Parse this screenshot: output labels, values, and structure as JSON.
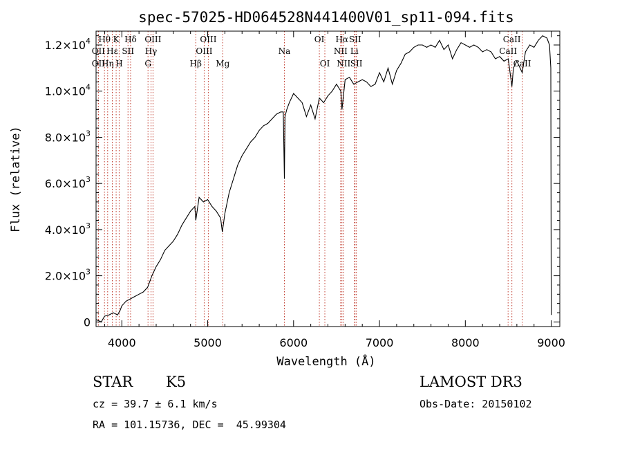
{
  "chart_data": {
    "type": "line",
    "title": "spec-57025-HD064528N441400V01_sp11-094.fits",
    "xlabel": "Wavelength (Å)",
    "ylabel": "Flux (relative)",
    "xlim": [
      3700,
      9100
    ],
    "ylim": [
      -200,
      12600
    ],
    "x_ticks": [
      {
        "value": 4000,
        "label": "4000"
      },
      {
        "value": 5000,
        "label": "5000"
      },
      {
        "value": 6000,
        "label": "6000"
      },
      {
        "value": 7000,
        "label": "7000"
      },
      {
        "value": 8000,
        "label": "8000"
      },
      {
        "value": 9000,
        "label": "9000"
      }
    ],
    "y_ticks": [
      {
        "value": 0,
        "mantissa": "0",
        "exponent": ""
      },
      {
        "value": 2000,
        "mantissa": "2.0×10",
        "exponent": "3"
      },
      {
        "value": 4000,
        "mantissa": "4.0×10",
        "exponent": "3"
      },
      {
        "value": 6000,
        "mantissa": "6.0×10",
        "exponent": "3"
      },
      {
        "value": 8000,
        "mantissa": "8.0×10",
        "exponent": "3"
      },
      {
        "value": 10000,
        "mantissa": "1.0×10",
        "exponent": "4"
      },
      {
        "value": 12000,
        "mantissa": "1.2×10",
        "exponent": "4"
      }
    ],
    "series": [
      {
        "name": "spectrum",
        "x": [
          3700,
          3760,
          3800,
          3850,
          3900,
          3950,
          3980,
          4000,
          4050,
          4100,
          4150,
          4200,
          4250,
          4300,
          4350,
          4400,
          4450,
          4500,
          4550,
          4600,
          4650,
          4700,
          4750,
          4800,
          4850,
          4861,
          4900,
          4950,
          5000,
          5050,
          5100,
          5150,
          5170,
          5200,
          5250,
          5300,
          5350,
          5400,
          5450,
          5500,
          5550,
          5600,
          5650,
          5700,
          5750,
          5800,
          5850,
          5880,
          5893,
          5900,
          5920,
          5950,
          6000,
          6050,
          6100,
          6150,
          6200,
          6250,
          6300,
          6350,
          6400,
          6450,
          6500,
          6550,
          6563,
          6600,
          6650,
          6700,
          6750,
          6800,
          6850,
          6900,
          6950,
          7000,
          7050,
          7100,
          7150,
          7200,
          7250,
          7300,
          7350,
          7400,
          7450,
          7500,
          7550,
          7600,
          7650,
          7700,
          7750,
          7800,
          7850,
          7900,
          7950,
          8000,
          8050,
          8100,
          8150,
          8200,
          8250,
          8300,
          8350,
          8400,
          8450,
          8500,
          8542,
          8560,
          8600,
          8662,
          8700,
          8750,
          8800,
          8850,
          8900,
          8950,
          8980,
          8995,
          9000
        ],
        "y": [
          100,
          0,
          250,
          300,
          400,
          300,
          500,
          700,
          900,
          1000,
          1100,
          1200,
          1300,
          1500,
          2000,
          2400,
          2700,
          3100,
          3300,
          3500,
          3800,
          4200,
          4500,
          4800,
          5000,
          4400,
          5400,
          5200,
          5300,
          5000,
          4800,
          4500,
          3900,
          4700,
          5600,
          6200,
          6800,
          7200,
          7500,
          7800,
          8000,
          8300,
          8500,
          8600,
          8800,
          9000,
          9100,
          9100,
          6200,
          8900,
          9200,
          9500,
          9900,
          9700,
          9500,
          8900,
          9400,
          8800,
          9700,
          9500,
          9800,
          10000,
          10300,
          10000,
          9200,
          10500,
          10600,
          10300,
          10400,
          10500,
          10400,
          10200,
          10300,
          10800,
          10400,
          11000,
          10300,
          10900,
          11200,
          11600,
          11700,
          11900,
          12000,
          12000,
          11900,
          12000,
          11900,
          12200,
          11800,
          12000,
          11400,
          11800,
          12100,
          12000,
          11900,
          12000,
          11900,
          11700,
          11800,
          11700,
          11400,
          11500,
          11300,
          11400,
          10200,
          11000,
          11300,
          10800,
          11700,
          12000,
          11900,
          12200,
          12400,
          12300,
          12000,
          11000,
          300
        ]
      }
    ],
    "lines": [
      {
        "name": "Hθ",
        "x": 3798,
        "row": 1
      },
      {
        "name": "OII",
        "x": 3727,
        "row": 2
      },
      {
        "name": "OII",
        "x": 3727,
        "row": 3
      },
      {
        "name": "Hε",
        "x": 3889,
        "row": 2
      },
      {
        "name": "Hη",
        "x": 3835,
        "row": 3
      },
      {
        "name": "K",
        "x": 3934,
        "row": 1
      },
      {
        "name": "SII",
        "x": 4072,
        "row": 2
      },
      {
        "name": "H",
        "x": 3969,
        "row": 3
      },
      {
        "name": "Hδ",
        "x": 4102,
        "row": 1
      },
      {
        "name": "OIII",
        "x": 4363,
        "row": 1
      },
      {
        "name": "Hγ",
        "x": 4340,
        "row": 2
      },
      {
        "name": "G",
        "x": 4305,
        "row": 3
      },
      {
        "name": "Hβ",
        "x": 4861,
        "row": 3
      },
      {
        "name": "OIII",
        "x": 5007,
        "row": 1
      },
      {
        "name": "OIII",
        "x": 4959,
        "row": 2
      },
      {
        "name": "Mg",
        "x": 5175,
        "row": 3
      },
      {
        "name": "Na",
        "x": 5893,
        "row": 2
      },
      {
        "name": "OI",
        "x": 6300,
        "row": 1
      },
      {
        "name": "OI",
        "x": 6364,
        "row": 3
      },
      {
        "name": "Hα",
        "x": 6563,
        "row": 1
      },
      {
        "name": "SII",
        "x": 6716,
        "row": 1
      },
      {
        "name": "NII",
        "x": 6548,
        "row": 2
      },
      {
        "name": "Li",
        "x": 6708,
        "row": 2
      },
      {
        "name": "NII",
        "x": 6583,
        "row": 3
      },
      {
        "name": "SII",
        "x": 6731,
        "row": 3
      },
      {
        "name": "CaII",
        "x": 8542,
        "row": 1
      },
      {
        "name": "CaII",
        "x": 8498,
        "row": 2
      },
      {
        "name": "CaII",
        "x": 8662,
        "row": 3
      }
    ],
    "legend": "none",
    "grid": false
  },
  "info": {
    "obj_type": "STAR",
    "subclass": "K5",
    "cz": "cz = 39.7 ± 6.1 km/s",
    "coords": "RA = 101.15736, DEC =  45.99304",
    "survey": "LAMOST DR3",
    "obs_date": "Obs-Date: 20150102"
  },
  "colors": {
    "line_marker": "#c0392b",
    "spectrum": "#000000"
  }
}
